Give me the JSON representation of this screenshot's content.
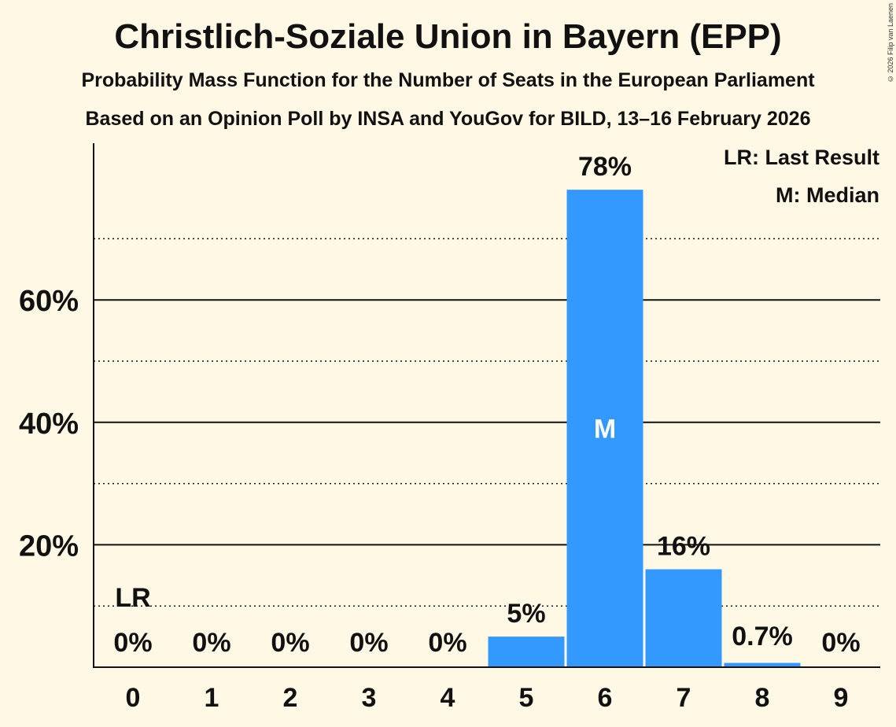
{
  "chart_data": {
    "type": "bar",
    "title": "Christlich-Soziale Union in Bayern (EPP)",
    "subtitle": "Probability Mass Function for the Number of Seats in the European Parliament",
    "subtitle2": "Based on an Opinion Poll by INSA and YouGov for BILD, 13–16 February 2026",
    "copyright": "© 2026 Filip van Laenen",
    "categories": [
      "0",
      "1",
      "2",
      "3",
      "4",
      "5",
      "6",
      "7",
      "8",
      "9"
    ],
    "values": [
      0,
      0,
      0,
      0,
      0,
      5,
      78,
      16,
      0.7,
      0
    ],
    "value_labels": [
      "0%",
      "0%",
      "0%",
      "0%",
      "0%",
      "5%",
      "78%",
      "16%",
      "0.7%",
      "0%"
    ],
    "ylim": [
      0,
      85
    ],
    "yticks": [
      20,
      40,
      60
    ],
    "ytick_labels": [
      "20%",
      "40%",
      "60%"
    ],
    "minor_gridlines": [
      10,
      30,
      50,
      70
    ],
    "last_result_index": 0,
    "last_result_marker": "LR",
    "median_index": 6,
    "median_marker": "M",
    "legend": [
      "LR: Last Result",
      "M: Median"
    ],
    "bar_color": "#3399FF",
    "background_color": "#FFF8E5"
  }
}
